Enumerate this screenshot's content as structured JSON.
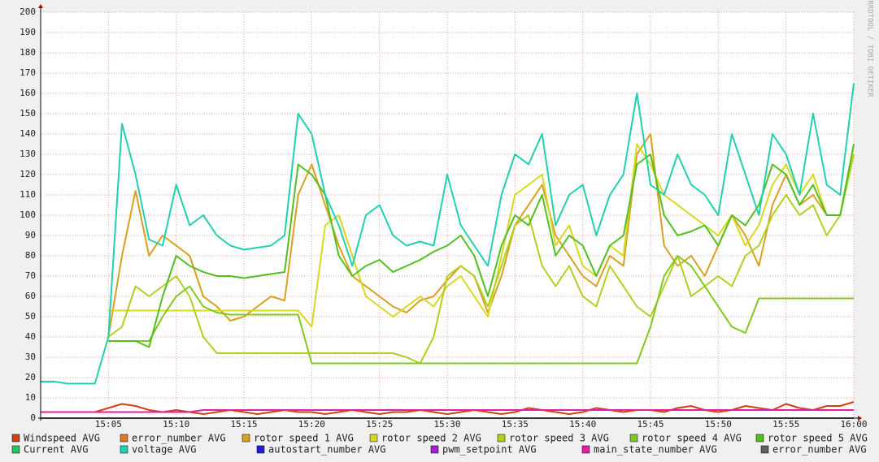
{
  "chart_data": {
    "type": "line",
    "watermark": "RRDTOOL / TOBI OETIKER",
    "x": [
      "15:00",
      "15:01",
      "15:02",
      "15:03",
      "15:04",
      "15:05",
      "15:06",
      "15:07",
      "15:08",
      "15:09",
      "15:10",
      "15:11",
      "15:12",
      "15:13",
      "15:14",
      "15:15",
      "15:16",
      "15:17",
      "15:18",
      "15:19",
      "15:20",
      "15:21",
      "15:22",
      "15:23",
      "15:24",
      "15:25",
      "15:26",
      "15:27",
      "15:28",
      "15:29",
      "15:30",
      "15:31",
      "15:32",
      "15:33",
      "15:34",
      "15:35",
      "15:36",
      "15:37",
      "15:38",
      "15:39",
      "15:40",
      "15:41",
      "15:42",
      "15:43",
      "15:44",
      "15:45",
      "15:46",
      "15:47",
      "15:48",
      "15:49",
      "15:50",
      "15:51",
      "15:52",
      "15:53",
      "15:54",
      "15:55",
      "15:56",
      "15:57",
      "15:58",
      "15:59",
      "16:00"
    ],
    "xlim": [
      "15:00",
      "16:00"
    ],
    "xticks": [
      "15:05",
      "15:10",
      "15:15",
      "15:20",
      "15:25",
      "15:30",
      "15:35",
      "15:40",
      "15:45",
      "15:50",
      "15:55",
      "16:00"
    ],
    "ylim": [
      0,
      200
    ],
    "yticks": [
      0,
      10,
      20,
      30,
      40,
      50,
      60,
      70,
      80,
      90,
      100,
      110,
      120,
      130,
      140,
      150,
      160,
      170,
      180,
      190,
      200
    ],
    "grid": true,
    "series": [
      {
        "name": "Windspeed AVG",
        "color": "#d04010",
        "values": [
          3,
          3,
          3,
          3,
          3,
          5,
          7,
          6,
          4,
          3,
          4,
          3,
          2,
          3,
          4,
          3,
          2,
          3,
          4,
          3,
          3,
          2,
          3,
          4,
          3,
          2,
          3,
          3,
          4,
          3,
          2,
          3,
          4,
          3,
          2,
          3,
          5,
          4,
          3,
          2,
          3,
          5,
          4,
          3,
          4,
          4,
          3,
          5,
          6,
          4,
          3,
          4,
          6,
          5,
          4,
          7,
          5,
          4,
          6,
          6,
          8
        ]
      },
      {
        "name": "error_number AVG",
        "color": "#e07820",
        "values": [
          0,
          0,
          0,
          0,
          0,
          0,
          0,
          0,
          0,
          0,
          0,
          0,
          0,
          0,
          0,
          0,
          0,
          0,
          0,
          0,
          0,
          0,
          0,
          0,
          0,
          0,
          0,
          0,
          0,
          0,
          0,
          0,
          0,
          0,
          0,
          0,
          0,
          0,
          0,
          0,
          0,
          0,
          0,
          0,
          0,
          0,
          0,
          0,
          0,
          0,
          0,
          0,
          0,
          0,
          0,
          0,
          0,
          0,
          0,
          0,
          0
        ]
      },
      {
        "name": "rotor speed 1 AVG",
        "color": "#d8a020",
        "values": [
          null,
          null,
          null,
          null,
          null,
          40,
          80,
          112,
          80,
          90,
          85,
          80,
          60,
          55,
          48,
          50,
          55,
          60,
          58,
          110,
          125,
          105,
          85,
          70,
          65,
          60,
          55,
          52,
          58,
          60,
          68,
          75,
          70,
          52,
          70,
          95,
          105,
          115,
          90,
          80,
          70,
          65,
          80,
          75,
          130,
          140,
          85,
          75,
          80,
          70,
          85,
          100,
          90,
          75,
          105,
          120,
          105,
          110,
          100,
          100,
          135
        ]
      },
      {
        "name": "rotor speed 2 AVG",
        "color": "#d8d820",
        "values": [
          null,
          null,
          null,
          null,
          null,
          53,
          53,
          53,
          53,
          53,
          53,
          53,
          53,
          53,
          53,
          53,
          53,
          53,
          53,
          53,
          45,
          95,
          100,
          80,
          60,
          55,
          50,
          55,
          60,
          55,
          65,
          70,
          60,
          50,
          80,
          110,
          115,
          120,
          85,
          95,
          75,
          70,
          85,
          80,
          135,
          125,
          110,
          105,
          100,
          95,
          90,
          100,
          85,
          95,
          115,
          125,
          110,
          120,
          100,
          100,
          130
        ]
      },
      {
        "name": "rotor speed 3 AVG",
        "color": "#b0d020",
        "values": [
          null,
          null,
          null,
          null,
          null,
          40,
          45,
          65,
          60,
          65,
          70,
          60,
          40,
          32,
          32,
          32,
          32,
          32,
          32,
          32,
          32,
          32,
          32,
          32,
          32,
          32,
          32,
          30,
          27,
          40,
          70,
          75,
          70,
          55,
          75,
          95,
          100,
          75,
          65,
          75,
          60,
          55,
          75,
          65,
          55,
          50,
          65,
          80,
          60,
          65,
          70,
          65,
          80,
          85,
          100,
          110,
          100,
          105,
          90,
          100,
          130
        ]
      },
      {
        "name": "rotor speed 4 AVG",
        "color": "#80c820",
        "values": [
          null,
          null,
          null,
          null,
          null,
          38,
          38,
          38,
          38,
          50,
          60,
          65,
          55,
          52,
          51,
          51,
          51,
          51,
          51,
          51,
          27,
          27,
          27,
          27,
          27,
          27,
          27,
          27,
          27,
          27,
          27,
          27,
          27,
          27,
          27,
          27,
          27,
          27,
          27,
          27,
          27,
          27,
          27,
          27,
          27,
          45,
          70,
          80,
          75,
          65,
          55,
          45,
          42,
          59,
          59,
          59,
          59,
          59,
          59,
          59,
          59
        ]
      },
      {
        "name": "rotor speed 5 AVG",
        "color": "#50c020",
        "values": [
          null,
          null,
          null,
          null,
          null,
          38,
          38,
          38,
          35,
          60,
          80,
          75,
          72,
          70,
          70,
          69,
          70,
          71,
          72,
          125,
          120,
          110,
          80,
          70,
          75,
          78,
          72,
          75,
          78,
          82,
          85,
          90,
          80,
          60,
          85,
          100,
          95,
          110,
          80,
          90,
          85,
          70,
          85,
          90,
          125,
          130,
          100,
          90,
          92,
          95,
          85,
          100,
          95,
          105,
          125,
          120,
          105,
          115,
          100,
          100,
          135
        ]
      },
      {
        "name": "Current AVG",
        "color": "#20c860",
        "values": [
          0,
          0,
          0,
          0,
          0,
          0,
          0,
          0,
          0,
          0,
          0,
          0,
          0,
          0,
          0,
          0,
          0,
          0,
          0,
          0,
          0,
          0,
          0,
          0,
          0,
          0,
          0,
          0,
          0,
          0,
          0,
          0,
          0,
          0,
          0,
          0,
          0,
          0,
          0,
          0,
          0,
          0,
          0,
          0,
          0,
          0,
          0,
          0,
          0,
          0,
          0,
          0,
          0,
          0,
          0,
          0,
          0,
          0,
          0,
          0,
          0
        ]
      },
      {
        "name": "voltage AVG",
        "color": "#20d0b0",
        "values": [
          18,
          18,
          17,
          17,
          17,
          40,
          145,
          120,
          88,
          85,
          115,
          95,
          100,
          90,
          85,
          83,
          84,
          85,
          90,
          150,
          140,
          110,
          95,
          75,
          100,
          105,
          90,
          85,
          87,
          85,
          120,
          95,
          85,
          75,
          110,
          130,
          125,
          140,
          95,
          110,
          115,
          90,
          110,
          120,
          160,
          115,
          110,
          130,
          115,
          110,
          100,
          140,
          120,
          100,
          140,
          130,
          110,
          150,
          115,
          110,
          165
        ]
      },
      {
        "name": "autostart_number AVG",
        "color": "#2020d0",
        "values": [
          0,
          0,
          0,
          0,
          0,
          0,
          0,
          0,
          0,
          0,
          0,
          0,
          0,
          0,
          0,
          0,
          0,
          0,
          0,
          0,
          0,
          0,
          0,
          0,
          0,
          0,
          0,
          0,
          0,
          0,
          0,
          0,
          0,
          0,
          0,
          0,
          0,
          0,
          0,
          0,
          0,
          0,
          0,
          0,
          0,
          0,
          0,
          0,
          0,
          0,
          0,
          0,
          0,
          0,
          0,
          0,
          0,
          0,
          0,
          0,
          0
        ]
      },
      {
        "name": "pwm_setpoint AVG",
        "color": "#a020d0",
        "values": [
          0,
          0,
          0,
          0,
          0,
          0,
          0,
          0,
          0,
          0,
          0,
          0,
          0,
          0,
          0,
          0,
          0,
          0,
          0,
          0,
          0,
          0,
          0,
          0,
          0,
          0,
          0,
          0,
          0,
          0,
          0,
          0,
          0,
          0,
          0,
          0,
          0,
          0,
          0,
          0,
          0,
          0,
          0,
          0,
          0,
          0,
          0,
          0,
          0,
          0,
          0,
          0,
          0,
          0,
          0,
          0,
          0,
          0,
          0,
          0,
          0
        ]
      },
      {
        "name": "main_state_number AVG",
        "color": "#e020a0",
        "values": [
          3,
          3,
          3,
          3,
          3,
          3,
          3,
          3,
          3,
          3,
          3,
          3,
          4,
          4,
          4,
          4,
          4,
          4,
          4,
          4,
          4,
          4,
          4,
          4,
          4,
          4,
          4,
          4,
          4,
          4,
          4,
          4,
          4,
          4,
          4,
          4,
          4,
          4,
          4,
          4,
          4,
          4,
          4,
          4,
          4,
          4,
          4,
          4,
          4,
          4,
          4,
          4,
          4,
          4,
          4,
          4,
          4,
          4,
          4,
          4,
          4
        ]
      },
      {
        "name": "error_number AVG",
        "color": "#606060",
        "values": [
          0,
          0,
          0,
          0,
          0,
          0,
          0,
          0,
          0,
          0,
          0,
          0,
          0,
          0,
          0,
          0,
          0,
          0,
          0,
          0,
          0,
          0,
          0,
          0,
          0,
          0,
          0,
          0,
          0,
          0,
          0,
          0,
          0,
          0,
          0,
          0,
          0,
          0,
          0,
          0,
          0,
          0,
          0,
          0,
          0,
          0,
          0,
          0,
          0,
          0,
          0,
          0,
          0,
          0,
          0,
          0,
          0,
          0,
          0,
          0,
          0
        ]
      }
    ]
  }
}
